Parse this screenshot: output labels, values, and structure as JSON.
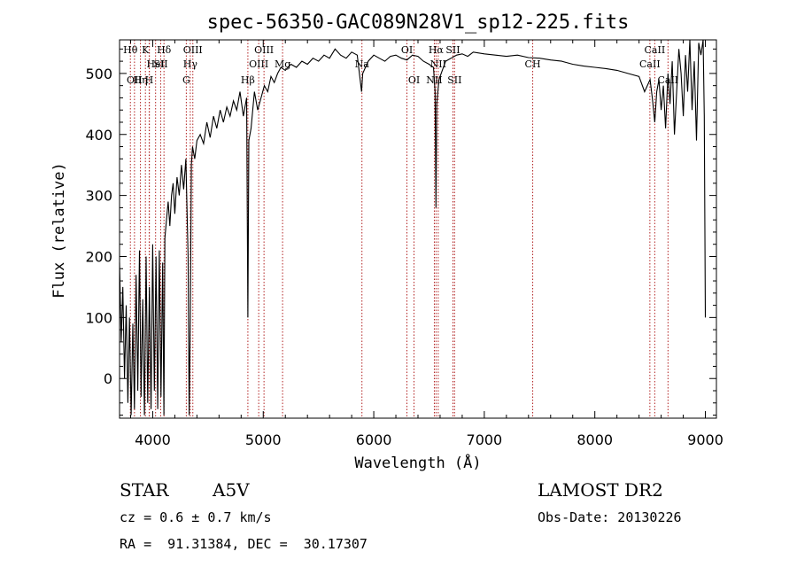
{
  "chart_data": {
    "type": "line",
    "title": "spec-56350-GAC089N28V1_sp12-225.fits",
    "xlabel": "Wavelength (Å)",
    "ylabel": "Flux (relative)",
    "xlim": [
      3700,
      9100
    ],
    "ylim": [
      -65,
      555
    ],
    "xticks": [
      4000,
      5000,
      6000,
      7000,
      8000,
      9000
    ],
    "yticks": [
      0,
      100,
      200,
      300,
      400,
      500
    ],
    "grid": false,
    "series": [
      {
        "x": [
          3700,
          3715,
          3730,
          3745,
          3760,
          3775,
          3790,
          3805,
          3820,
          3835,
          3850,
          3865,
          3880,
          3895,
          3910,
          3925,
          3940,
          3955,
          3970,
          3985,
          4000,
          4015,
          4030,
          4045,
          4060,
          4075,
          4090,
          4101,
          4110,
          4125,
          4140,
          4155,
          4170,
          4185,
          4200,
          4220,
          4240,
          4260,
          4280,
          4300,
          4320,
          4330,
          4340,
          4350,
          4360,
          4380,
          4400,
          4430,
          4460,
          4490,
          4520,
          4550,
          4580,
          4610,
          4640,
          4670,
          4700,
          4730,
          4760,
          4790,
          4820,
          4850,
          4861,
          4870,
          4890,
          4920,
          4950,
          4980,
          5010,
          5040,
          5070,
          5100,
          5130,
          5160,
          5200,
          5250,
          5300,
          5350,
          5400,
          5450,
          5500,
          5550,
          5600,
          5650,
          5700,
          5750,
          5800,
          5850,
          5890,
          5900,
          5950,
          6000,
          6050,
          6100,
          6150,
          6200,
          6250,
          6300,
          6350,
          6400,
          6450,
          6500,
          6540,
          6555,
          6563,
          6570,
          6590,
          6650,
          6700,
          6750,
          6800,
          6850,
          6900,
          7000,
          7100,
          7200,
          7300,
          7400,
          7500,
          7600,
          7700,
          7800,
          7900,
          8000,
          8100,
          8200,
          8300,
          8400,
          8450,
          8500,
          8520,
          8542,
          8560,
          8580,
          8600,
          8620,
          8640,
          8662,
          8680,
          8700,
          8720,
          8740,
          8760,
          8780,
          8800,
          8820,
          8840,
          8860,
          8880,
          8900,
          8920,
          8940,
          8960,
          8980,
          8990,
          9000
        ],
        "y": [
          190,
          60,
          150,
          0,
          120,
          -40,
          100,
          -60,
          90,
          -50,
          170,
          -20,
          210,
          -30,
          130,
          -60,
          200,
          -40,
          150,
          -50,
          220,
          -20,
          200,
          -50,
          210,
          -30,
          190,
          -60,
          230,
          260,
          290,
          250,
          300,
          320,
          270,
          330,
          300,
          350,
          310,
          360,
          200,
          -60,
          100,
          350,
          380,
          360,
          390,
          400,
          385,
          420,
          395,
          430,
          410,
          440,
          420,
          445,
          430,
          455,
          440,
          470,
          430,
          460,
          100,
          390,
          410,
          470,
          440,
          460,
          480,
          470,
          495,
          485,
          500,
          510,
          505,
          515,
          510,
          520,
          515,
          525,
          520,
          530,
          525,
          540,
          530,
          525,
          535,
          530,
          470,
          500,
          520,
          530,
          525,
          520,
          528,
          530,
          525,
          522,
          530,
          528,
          520,
          515,
          510,
          470,
          280,
          450,
          490,
          520,
          525,
          530,
          532,
          528,
          535,
          532,
          530,
          528,
          530,
          526,
          525,
          522,
          520,
          515,
          512,
          510,
          508,
          505,
          500,
          495,
          470,
          490,
          460,
          420,
          470,
          490,
          440,
          480,
          410,
          500,
          450,
          520,
          400,
          470,
          540,
          500,
          430,
          530,
          470,
          555,
          440,
          520,
          390,
          550,
          530,
          560,
          430,
          100
        ]
      }
    ],
    "lines": [
      {
        "x": 3798,
        "labels": [
          "Hθ"
        ],
        "rows": [
          0
        ]
      },
      {
        "x": 3835,
        "labels": [
          "OII"
        ],
        "rows": [
          2
        ]
      },
      {
        "x": 3889,
        "labels": [
          "Hη"
        ],
        "rows": [
          2
        ]
      },
      {
        "x": 3934,
        "labels": [
          "K"
        ],
        "rows": [
          0
        ]
      },
      {
        "x": 3968,
        "labels": [
          "H"
        ],
        "rows": [
          2
        ]
      },
      {
        "x": 3970,
        "labels": [],
        "rows": []
      },
      {
        "x": 4026,
        "labels": [
          "HeI"
        ],
        "rows": [
          1
        ]
      },
      {
        "x": 4072,
        "labels": [
          "SII"
        ],
        "rows": [
          1
        ]
      },
      {
        "x": 4102,
        "labels": [
          "Hδ"
        ],
        "rows": [
          0
        ]
      },
      {
        "x": 4304,
        "labels": [
          "G"
        ],
        "rows": [
          2
        ]
      },
      {
        "x": 4340,
        "labels": [
          "Hγ"
        ],
        "rows": [
          1
        ]
      },
      {
        "x": 4363,
        "labels": [
          "OIII"
        ],
        "rows": [
          0
        ]
      },
      {
        "x": 4861,
        "labels": [
          "Hβ"
        ],
        "rows": [
          2
        ]
      },
      {
        "x": 4959,
        "labels": [
          "OIII"
        ],
        "rows": [
          1
        ]
      },
      {
        "x": 5007,
        "labels": [
          "OIII"
        ],
        "rows": [
          0
        ]
      },
      {
        "x": 5175,
        "labels": [
          "Mg"
        ],
        "rows": [
          1
        ]
      },
      {
        "x": 5893,
        "labels": [
          "Na"
        ],
        "rows": [
          1
        ]
      },
      {
        "x": 6300,
        "labels": [
          "OI"
        ],
        "rows": [
          0
        ]
      },
      {
        "x": 6364,
        "labels": [
          "OI"
        ],
        "rows": [
          2
        ]
      },
      {
        "x": 6548,
        "labels": [
          "NII"
        ],
        "rows": [
          2
        ]
      },
      {
        "x": 6563,
        "labels": [
          "Hα"
        ],
        "rows": [
          0
        ]
      },
      {
        "x": 6583,
        "labels": [
          "NII"
        ],
        "rows": [
          1
        ]
      },
      {
        "x": 6716,
        "labels": [
          "SII"
        ],
        "rows": [
          0
        ]
      },
      {
        "x": 6731,
        "labels": [
          "SII"
        ],
        "rows": [
          2
        ]
      },
      {
        "x": 7438,
        "labels": [
          "CH"
        ],
        "rows": [
          1
        ]
      },
      {
        "x": 8498,
        "labels": [
          "CaII"
        ],
        "rows": [
          1
        ]
      },
      {
        "x": 8542,
        "labels": [
          "CaII"
        ],
        "rows": [
          0
        ]
      },
      {
        "x": 8662,
        "labels": [
          "CaII"
        ],
        "rows": [
          2
        ]
      }
    ]
  },
  "info": {
    "class_label": "STAR",
    "subclass_label": "A5V",
    "survey_label": "LAMOST DR2",
    "cz_text": "cz = 0.6 ± 0.7 km/s",
    "obs_date_text": "Obs-Date: 20130226",
    "radec_text": "RA =  91.31384, DEC =  30.17307"
  },
  "colors": {
    "line_marker": "#b22222",
    "spectrum": "#000000"
  }
}
